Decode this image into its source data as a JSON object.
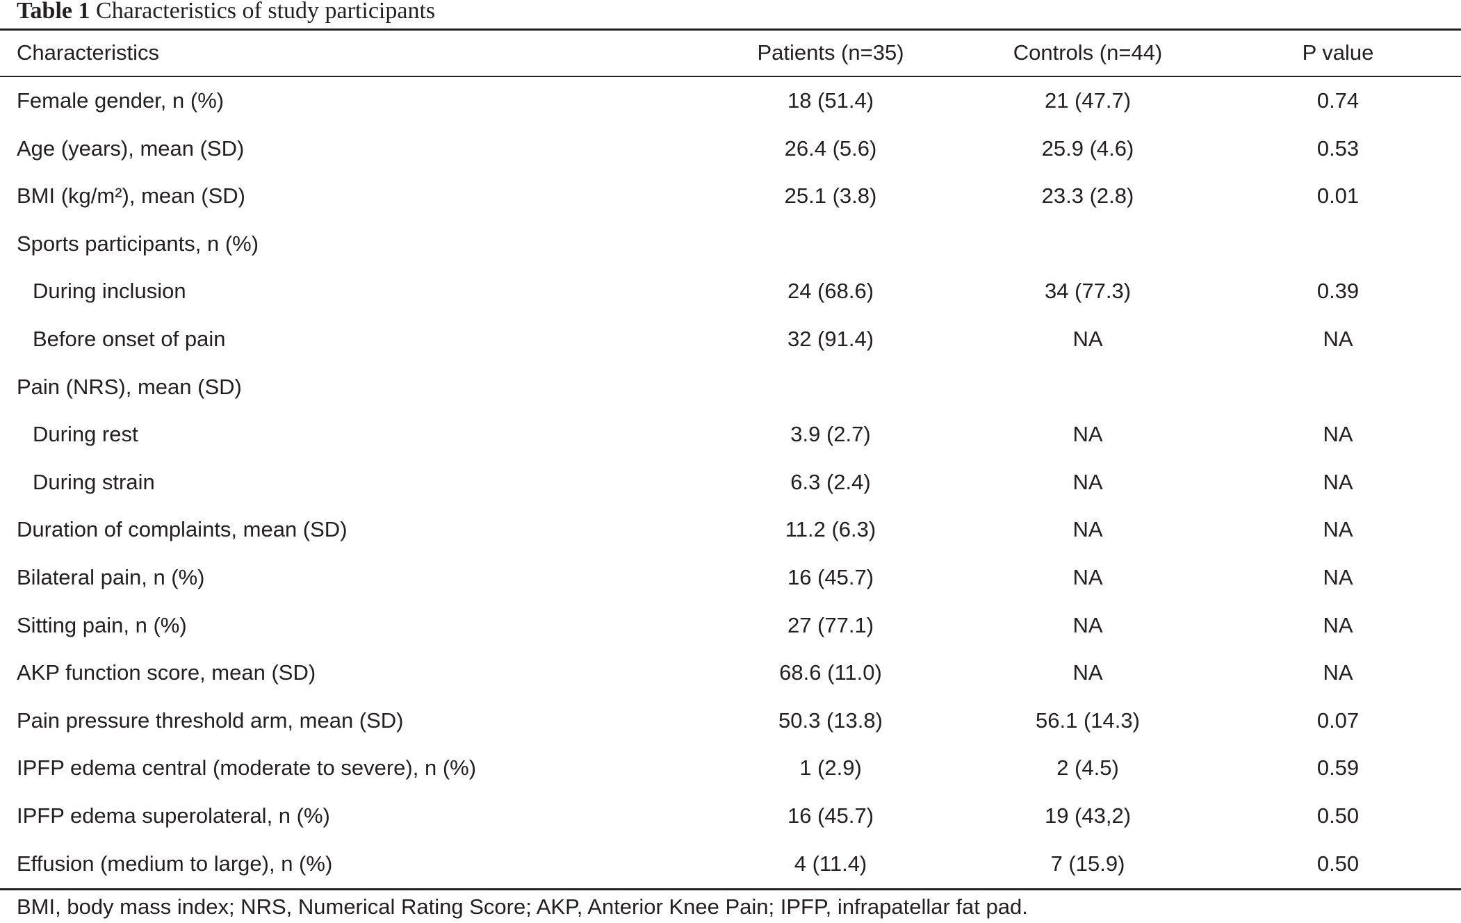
{
  "caption": {
    "label": "Table 1",
    "text": "Characteristics of study participants"
  },
  "headers": [
    "Characteristics",
    "Patients (n=35)",
    "Controls (n=44)",
    "P value"
  ],
  "rows": [
    {
      "label": "Female gender, n (%)",
      "indent": false,
      "patients": "18 (51.4)",
      "controls": "21 (47.7)",
      "p": "0.74"
    },
    {
      "label": "Age (years), mean (SD)",
      "indent": false,
      "patients": "26.4 (5.6)",
      "controls": "25.9 (4.6)",
      "p": "0.53"
    },
    {
      "label": "BMI (kg/m²), mean (SD)",
      "indent": false,
      "patients": "25.1 (3.8)",
      "controls": "23.3 (2.8)",
      "p": "0.01"
    },
    {
      "label": "Sports participants, n (%)",
      "indent": false,
      "patients": "",
      "controls": "",
      "p": ""
    },
    {
      "label": "During inclusion",
      "indent": true,
      "patients": "24 (68.6)",
      "controls": "34 (77.3)",
      "p": "0.39"
    },
    {
      "label": "Before onset of pain",
      "indent": true,
      "patients": "32 (91.4)",
      "controls": "NA",
      "p": "NA"
    },
    {
      "label": "Pain (NRS), mean (SD)",
      "indent": false,
      "patients": "",
      "controls": "",
      "p": ""
    },
    {
      "label": "During rest",
      "indent": true,
      "patients": "3.9 (2.7)",
      "controls": "NA",
      "p": "NA"
    },
    {
      "label": "During strain",
      "indent": true,
      "patients": "6.3 (2.4)",
      "controls": "NA",
      "p": "NA"
    },
    {
      "label": "Duration of complaints, mean (SD)",
      "indent": false,
      "patients": "11.2 (6.3)",
      "controls": "NA",
      "p": "NA"
    },
    {
      "label": "Bilateral pain, n (%)",
      "indent": false,
      "patients": "16 (45.7)",
      "controls": "NA",
      "p": "NA"
    },
    {
      "label": "Sitting pain, n (%)",
      "indent": false,
      "patients": "27 (77.1)",
      "controls": "NA",
      "p": "NA"
    },
    {
      "label": "AKP function score, mean (SD)",
      "indent": false,
      "patients": "68.6 (11.0)",
      "controls": "NA",
      "p": "NA"
    },
    {
      "label": "Pain pressure threshold arm, mean (SD)",
      "indent": false,
      "patients": "50.3 (13.8)",
      "controls": "56.1 (14.3)",
      "p": "0.07"
    },
    {
      "label": "IPFP edema central (moderate to severe), n (%)",
      "indent": false,
      "patients": "1 (2.9)",
      "controls": "2 (4.5)",
      "p": "0.59"
    },
    {
      "label": "IPFP edema superolateral, n (%)",
      "indent": false,
      "patients": "16 (45.7)",
      "controls": "19 (43,2)",
      "p": "0.50"
    },
    {
      "label": "Effusion (medium to large), n (%)",
      "indent": false,
      "patients": "4 (11.4)",
      "controls": "7 (15.9)",
      "p": "0.50"
    }
  ],
  "footnote": "BMI, body mass index; NRS, Numerical Rating Score; AKP, Anterior Knee Pain; IPFP, infrapatellar fat pad."
}
